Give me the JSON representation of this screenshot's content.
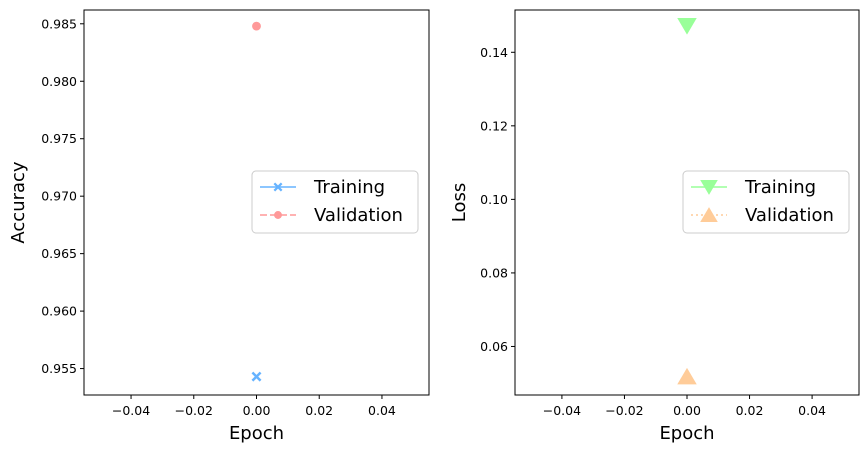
{
  "chart_data": [
    {
      "type": "line",
      "xlabel": "Epoch",
      "ylabel": "Accuracy",
      "xlim": [
        -0.055,
        0.055
      ],
      "ylim": [
        0.9527,
        0.9862
      ],
      "xticks": [
        -0.04,
        -0.02,
        0.0,
        0.02,
        0.04
      ],
      "xtick_labels": [
        "−0.04",
        "−0.02",
        "0.00",
        "0.02",
        "0.04"
      ],
      "yticks": [
        0.955,
        0.96,
        0.965,
        0.97,
        0.975,
        0.98,
        0.985
      ],
      "ytick_labels": [
        "0.955",
        "0.960",
        "0.965",
        "0.970",
        "0.975",
        "0.980",
        "0.985"
      ],
      "legend_position": "center-right",
      "series": [
        {
          "name": "Training",
          "color": "#66b3ff",
          "marker": "X",
          "linestyle": "solid",
          "x": [
            0
          ],
          "y": [
            0.9543
          ]
        },
        {
          "name": "Validation",
          "color": "#ff9999",
          "marker": "o",
          "linestyle": "dashed",
          "x": [
            0
          ],
          "y": [
            0.9848
          ]
        }
      ]
    },
    {
      "type": "line",
      "xlabel": "Epoch",
      "ylabel": "Loss",
      "xlim": [
        -0.055,
        0.055
      ],
      "ylim": [
        0.0468,
        0.1515
      ],
      "xticks": [
        -0.04,
        -0.02,
        0.0,
        0.02,
        0.04
      ],
      "xtick_labels": [
        "−0.04",
        "−0.02",
        "0.00",
        "0.02",
        "0.04"
      ],
      "yticks": [
        0.06,
        0.08,
        0.1,
        0.12,
        0.14
      ],
      "ytick_labels": [
        "0.06",
        "0.08",
        "0.10",
        "0.12",
        "0.14"
      ],
      "legend_position": "center-right",
      "series": [
        {
          "name": "Training",
          "color": "#99ff99",
          "marker": "v",
          "linestyle": "solid",
          "x": [
            0
          ],
          "y": [
            0.1472
          ]
        },
        {
          "name": "Validation",
          "color": "#ffcc99",
          "marker": "^",
          "linestyle": "dotted",
          "x": [
            0
          ],
          "y": [
            0.0518
          ]
        }
      ]
    }
  ]
}
